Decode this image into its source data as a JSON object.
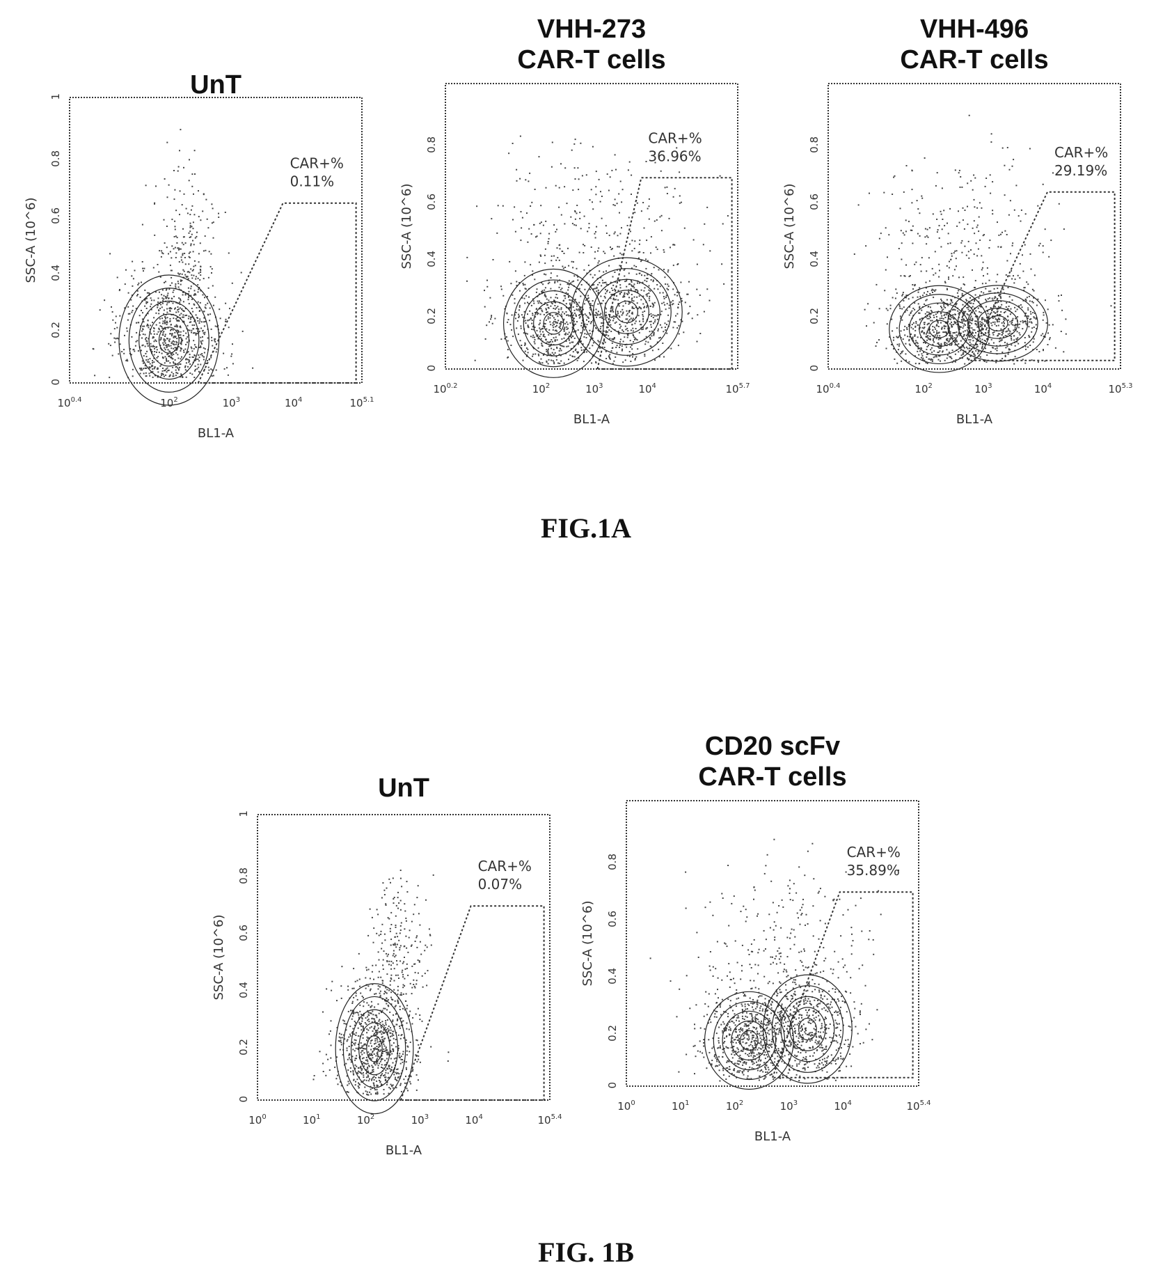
{
  "figures": [
    {
      "caption": "FIG.1A"
    },
    {
      "caption": "FIG. 1B"
    }
  ],
  "chart_data": [
    {
      "type": "scatter",
      "figure": "FIG.1A",
      "title": "UnT",
      "xlabel": "BL1-A",
      "ylabel": "SSC-A (10^6)",
      "xscale": "log",
      "xlim": [
        "10^0.4",
        "10^5.1"
      ],
      "ylim": [
        0,
        1
      ],
      "xticks": [
        "10^0.4",
        "10^2",
        "10^3",
        "10^4",
        "10^5.1"
      ],
      "yticks": [
        "0",
        "0.2",
        "0.4",
        "0.6",
        "0.8",
        "1"
      ],
      "gate": {
        "label": "CAR+%",
        "value": "0.11%"
      },
      "grid": false
    },
    {
      "type": "scatter",
      "figure": "FIG.1A",
      "title": "VHH-273\nCAR-T cells",
      "xlabel": "BL1-A",
      "ylabel": "SSC-A (10^6)",
      "xscale": "log",
      "xlim": [
        "10^0.2",
        "10^5.7"
      ],
      "ylim": [
        0,
        1
      ],
      "xticks": [
        "10^0.2",
        "10^2",
        "10^3",
        "10^4",
        "10^5.7"
      ],
      "yticks": [
        "0",
        "0.2",
        "0.4",
        "0.6",
        "0.8"
      ],
      "gate": {
        "label": "CAR+%",
        "value": "36.96%"
      },
      "grid": false
    },
    {
      "type": "scatter",
      "figure": "FIG.1A",
      "title": "VHH-496\nCAR-T cells",
      "xlabel": "BL1-A",
      "ylabel": "SSC-A (10^6)",
      "xscale": "log",
      "xlim": [
        "10^0.4",
        "10^5.3"
      ],
      "ylim": [
        0,
        1
      ],
      "xticks": [
        "10^0.4",
        "10^2",
        "10^3",
        "10^4",
        "10^5.3"
      ],
      "yticks": [
        "0",
        "0.2",
        "0.4",
        "0.6",
        "0.8"
      ],
      "gate": {
        "label": "CAR+%",
        "value": "29.19%"
      },
      "grid": false
    },
    {
      "type": "scatter",
      "figure": "FIG. 1B",
      "title": "UnT",
      "xlabel": "BL1-A",
      "ylabel": "SSC-A (10^6)",
      "xscale": "log",
      "xlim": [
        "10^0",
        "10^5.4"
      ],
      "ylim": [
        0,
        1
      ],
      "xticks": [
        "10^0",
        "10^1",
        "10^2",
        "10^3",
        "10^4",
        "10^5.4"
      ],
      "yticks": [
        "0",
        "0.2",
        "0.4",
        "0.6",
        "0.8",
        "1"
      ],
      "gate": {
        "label": "CAR+%",
        "value": "0.07%"
      },
      "grid": false
    },
    {
      "type": "scatter",
      "figure": "FIG. 1B",
      "title": "CD20 scFv\nCAR-T cells",
      "xlabel": "BL1-A",
      "ylabel": "SSC-A (10^6)",
      "xscale": "log",
      "xlim": [
        "10^0",
        "10^5.4"
      ],
      "ylim": [
        0,
        1
      ],
      "xticks": [
        "10^0",
        "10^1",
        "10^2",
        "10^3",
        "10^4",
        "10^5.4"
      ],
      "yticks": [
        "0",
        "0.2",
        "0.4",
        "0.6",
        "0.8"
      ],
      "gate": {
        "label": "CAR+%",
        "value": "35.89%"
      },
      "grid": false
    }
  ]
}
